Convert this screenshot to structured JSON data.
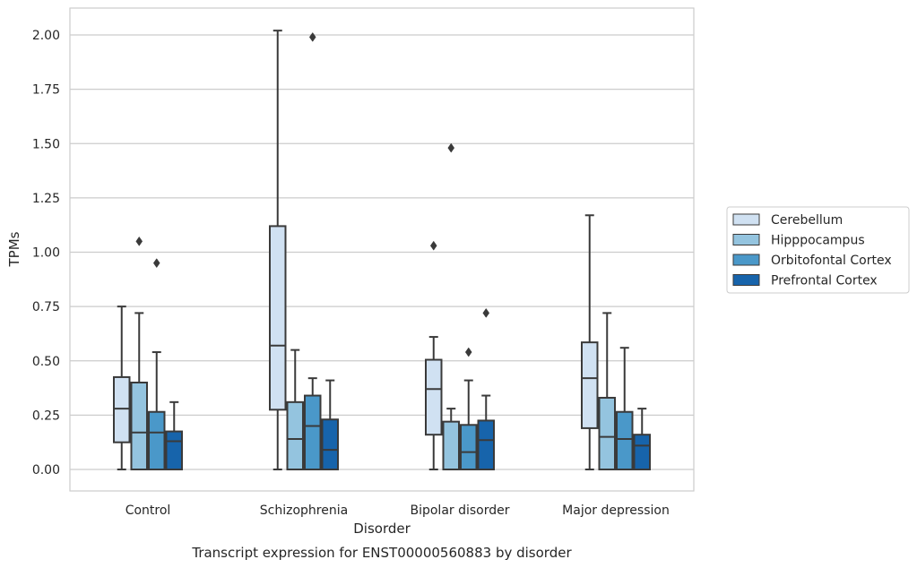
{
  "chart_data": {
    "type": "boxplot",
    "title": "Transcript expression for ENST00000560883 by disorder",
    "xlabel": "Disorder",
    "ylabel": "TPMs",
    "ylim": [
      -0.1,
      2.12
    ],
    "yticks": [
      "0.00",
      "0.25",
      "0.50",
      "0.75",
      "1.00",
      "1.25",
      "1.50",
      "1.75",
      "2.00"
    ],
    "grid": "horizontal",
    "legend_placement": "outside-right",
    "categories": [
      "Control",
      "Schizophrenia",
      "Bipolar disorder",
      "Major depression"
    ],
    "series": [
      {
        "name": "Cerebellum",
        "color": "#d0e1f2",
        "boxes": [
          {
            "min": 0.0,
            "q1": 0.125,
            "median": 0.28,
            "q3": 0.425,
            "max": 0.75,
            "outliers": []
          },
          {
            "min": 0.0,
            "q1": 0.275,
            "median": 0.57,
            "q3": 1.12,
            "max": 2.02,
            "outliers": []
          },
          {
            "min": 0.0,
            "q1": 0.16,
            "median": 0.37,
            "q3": 0.505,
            "max": 0.61,
            "outliers": [
              1.03
            ]
          },
          {
            "min": 0.0,
            "q1": 0.19,
            "median": 0.42,
            "q3": 0.585,
            "max": 1.17,
            "outliers": []
          }
        ]
      },
      {
        "name": "Hipppocampus",
        "color": "#94c4df",
        "boxes": [
          {
            "min": 0.0,
            "q1": 0.0,
            "median": 0.17,
            "q3": 0.4,
            "max": 0.72,
            "outliers": [
              1.05
            ]
          },
          {
            "min": 0.0,
            "q1": 0.0,
            "median": 0.14,
            "q3": 0.31,
            "max": 0.55,
            "outliers": []
          },
          {
            "min": 0.0,
            "q1": 0.0,
            "median": 0.0,
            "q3": 0.22,
            "max": 0.28,
            "outliers": [
              1.48
            ]
          },
          {
            "min": 0.0,
            "q1": 0.0,
            "median": 0.15,
            "q3": 0.33,
            "max": 0.72,
            "outliers": []
          }
        ]
      },
      {
        "name": "Orbitofontal Cortex",
        "color": "#4a98c9",
        "boxes": [
          {
            "min": 0.0,
            "q1": 0.0,
            "median": 0.17,
            "q3": 0.265,
            "max": 0.54,
            "outliers": [
              0.95
            ]
          },
          {
            "min": 0.0,
            "q1": 0.0,
            "median": 0.2,
            "q3": 0.34,
            "max": 0.42,
            "outliers": [
              1.99
            ]
          },
          {
            "min": 0.0,
            "q1": 0.0,
            "median": 0.08,
            "q3": 0.205,
            "max": 0.41,
            "outliers": [
              0.54
            ]
          },
          {
            "min": 0.0,
            "q1": 0.0,
            "median": 0.14,
            "q3": 0.265,
            "max": 0.56,
            "outliers": []
          }
        ]
      },
      {
        "name": "Prefrontal Cortex",
        "color": "#1764ab",
        "boxes": [
          {
            "min": 0.0,
            "q1": 0.0,
            "median": 0.13,
            "q3": 0.175,
            "max": 0.31,
            "outliers": []
          },
          {
            "min": 0.0,
            "q1": 0.0,
            "median": 0.09,
            "q3": 0.23,
            "max": 0.41,
            "outliers": []
          },
          {
            "min": 0.0,
            "q1": 0.0,
            "median": 0.135,
            "q3": 0.225,
            "max": 0.34,
            "outliers": [
              0.72
            ]
          },
          {
            "min": 0.0,
            "q1": 0.0,
            "median": 0.11,
            "q3": 0.16,
            "max": 0.28,
            "outliers": []
          }
        ]
      }
    ]
  }
}
